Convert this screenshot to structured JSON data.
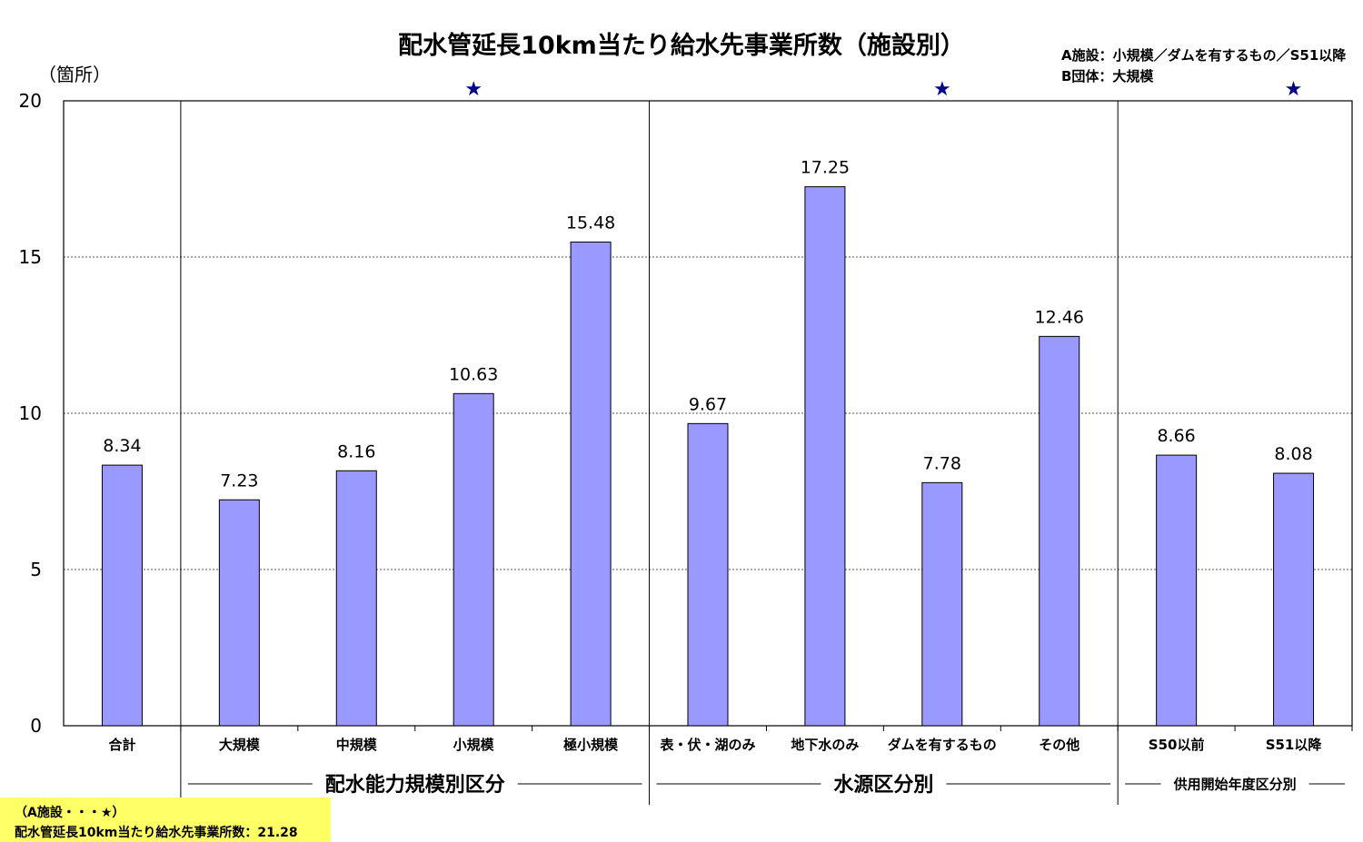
{
  "chart_data": {
    "type": "bar",
    "title": "配水管延長10km当たり給水先事業所数（施設別）",
    "ylabel": "（箇所）",
    "ylim": [
      0,
      20
    ],
    "yticks": [
      "0",
      "5",
      "10",
      "15",
      "20"
    ],
    "grid": true,
    "bar_color": "#9999ff",
    "star_color": "#00008b",
    "categories": [
      "合計",
      "大規模",
      "中規模",
      "小規模",
      "極小規模",
      "表・伏・湖のみ",
      "地下水のみ",
      "ダムを有するもの",
      "その他",
      "S50以前",
      "S51以降"
    ],
    "values": [
      8.34,
      7.23,
      8.16,
      10.63,
      15.48,
      9.67,
      17.25,
      7.78,
      12.46,
      8.66,
      8.08
    ],
    "value_labels": [
      "8.34",
      "7.23",
      "8.16",
      "10.63",
      "15.48",
      "9.67",
      "17.25",
      "7.78",
      "12.46",
      "8.66",
      "8.08"
    ],
    "star_marker": "★",
    "starred": [
      "小規模",
      "ダムを有するもの",
      "S51以降"
    ],
    "groups": [
      {
        "label": "配水能力規模別区分",
        "categories": [
          "大規模",
          "中規模",
          "小規模",
          "極小規模"
        ]
      },
      {
        "label": "水源区分別",
        "categories": [
          "表・伏・湖のみ",
          "地下水のみ",
          "ダムを有するもの",
          "その他"
        ]
      },
      {
        "label": "供用開始年度区分別",
        "categories": [
          "S50以前",
          "S51以降"
        ]
      }
    ],
    "legend": {
      "position": "top-right",
      "lines": [
        "A施設：小規模／ダムを有するもの／S51以降",
        "B団体：大規模"
      ]
    },
    "annotation": {
      "lines": [
        "（A施設・・・★）",
        "配水管延長10km当たり給水先事業所数：21.28"
      ],
      "background": "#ffff66"
    }
  }
}
